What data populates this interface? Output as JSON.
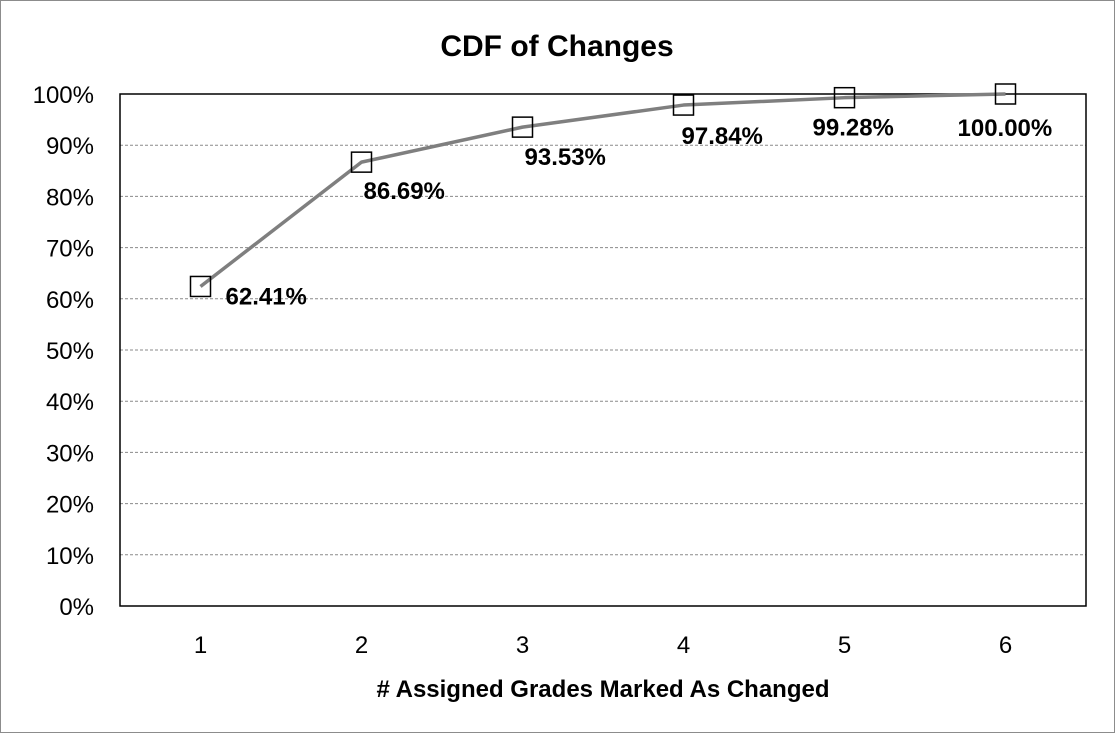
{
  "chart_data": {
    "type": "line",
    "title": "CDF of Changes",
    "xlabel": "# Assigned Grades Marked As Changed",
    "ylabel": "",
    "x": [
      1,
      2,
      3,
      4,
      5,
      6
    ],
    "categories": [
      "1",
      "2",
      "3",
      "4",
      "5",
      "6"
    ],
    "series": [
      {
        "values": [
          62.41,
          86.69,
          93.53,
          97.84,
          99.28,
          100.0
        ],
        "data_labels": [
          "62.41%",
          "86.69%",
          "93.53%",
          "97.84%",
          "99.28%",
          "100.00%"
        ],
        "color": "#7f7f7f",
        "marker": "open-square"
      }
    ],
    "ylim": [
      0,
      100
    ],
    "y_ticks": [
      "0%",
      "10%",
      "20%",
      "30%",
      "40%",
      "50%",
      "60%",
      "70%",
      "80%",
      "90%",
      "100%"
    ],
    "grid": "horizontal dashed",
    "legend": "none"
  }
}
